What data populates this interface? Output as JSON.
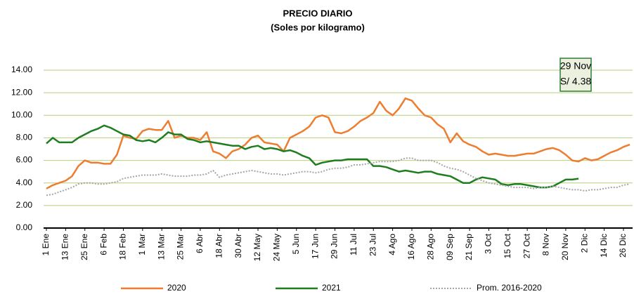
{
  "chart_data": {
    "type": "line",
    "title": "PRECIO DIARIO",
    "subtitle": "(Soles por kilogramo)",
    "categories": [
      "1 Ene",
      null,
      null,
      "13 Ene",
      null,
      null,
      "25 Ene",
      null,
      null,
      "6 Feb",
      null,
      null,
      "18 Feb",
      null,
      null,
      "1 Mar",
      null,
      null,
      "13 Mar",
      null,
      null,
      "25 Mar",
      null,
      null,
      "6 Abr",
      null,
      null,
      "18 Abr",
      null,
      null,
      "30 Abr",
      null,
      null,
      "12 May",
      null,
      null,
      "24 May",
      null,
      null,
      "5 Jun",
      null,
      null,
      "17 Jun",
      null,
      null,
      "29 Jun",
      null,
      null,
      "11 Jul",
      null,
      null,
      "23 Jul",
      null,
      null,
      "4 Ago",
      null,
      null,
      "16 Ago",
      null,
      null,
      "28 Ago",
      null,
      null,
      "09 Sep",
      null,
      null,
      "21 Sep",
      null,
      null,
      "3 Oct",
      null,
      null,
      "15 Oct",
      null,
      null,
      "27 Oct",
      null,
      null,
      "8 Nov",
      null,
      null,
      "20 Nov",
      null,
      null,
      "2 Dic",
      null,
      null,
      "14 Dic",
      null,
      null,
      "26 Dic",
      null
    ],
    "series": [
      {
        "name": "2020",
        "color": "#ed7d31",
        "line_style": "solid",
        "values": [
          3.5,
          3.8,
          4.0,
          4.2,
          4.6,
          5.5,
          6.0,
          5.8,
          5.8,
          5.7,
          5.7,
          6.5,
          8.2,
          8.0,
          7.9,
          8.6,
          8.8,
          8.7,
          8.7,
          9.5,
          8.0,
          8.2,
          8.0,
          8.0,
          7.8,
          8.5,
          6.8,
          6.6,
          6.2,
          6.8,
          7.0,
          7.4,
          8.0,
          8.2,
          7.6,
          7.5,
          7.4,
          6.8,
          8.0,
          8.3,
          8.6,
          9.0,
          9.8,
          10.0,
          9.8,
          8.5,
          8.4,
          8.6,
          9.0,
          9.5,
          9.8,
          10.2,
          11.2,
          10.4,
          10.0,
          10.6,
          11.5,
          11.3,
          10.6,
          10.0,
          9.8,
          9.2,
          8.8,
          7.6,
          8.4,
          7.7,
          7.4,
          7.2,
          6.8,
          6.5,
          6.6,
          6.5,
          6.4,
          6.4,
          6.5,
          6.6,
          6.6,
          6.8,
          7.0,
          7.1,
          6.9,
          6.5,
          6.0,
          5.9,
          6.2,
          6.0,
          6.1,
          6.4,
          6.7,
          6.9,
          7.2,
          7.4
        ]
      },
      {
        "name": "2021",
        "color": "#1e7d1e",
        "line_style": "solid",
        "values": [
          7.5,
          8.0,
          7.6,
          7.6,
          7.6,
          8.0,
          8.3,
          8.6,
          8.8,
          9.1,
          8.9,
          8.6,
          8.3,
          8.2,
          7.8,
          7.7,
          7.8,
          7.6,
          8.0,
          8.5,
          8.3,
          8.3,
          7.9,
          7.8,
          7.6,
          7.7,
          7.6,
          7.5,
          7.4,
          7.3,
          7.3,
          7.0,
          7.2,
          7.3,
          7.0,
          7.1,
          7.0,
          6.8,
          6.9,
          6.7,
          6.4,
          6.2,
          5.6,
          5.8,
          5.9,
          6.0,
          6.0,
          6.1,
          6.1,
          6.1,
          6.1,
          5.5,
          5.5,
          5.4,
          5.2,
          5.0,
          5.1,
          5.0,
          4.9,
          5.0,
          5.0,
          4.8,
          4.7,
          4.6,
          4.3,
          4.0,
          4.0,
          4.3,
          4.5,
          4.4,
          4.3,
          3.9,
          3.8,
          3.9,
          3.9,
          3.8,
          3.7,
          3.6,
          3.6,
          3.7,
          4.0,
          4.3,
          4.3,
          4.38,
          null,
          null,
          null,
          null,
          null,
          null,
          null,
          null
        ]
      },
      {
        "name": "Prom. 2016-2020",
        "color": "#a6a6a6",
        "line_style": "dotted",
        "values": [
          2.9,
          3.0,
          3.2,
          3.4,
          3.6,
          3.9,
          4.0,
          4.0,
          3.9,
          3.9,
          4.0,
          4.1,
          4.4,
          4.5,
          4.6,
          4.7,
          4.7,
          4.7,
          4.8,
          4.7,
          4.6,
          4.6,
          4.6,
          4.7,
          4.7,
          4.8,
          5.1,
          4.5,
          4.7,
          4.8,
          4.9,
          5.0,
          5.1,
          5.0,
          4.9,
          4.8,
          4.8,
          4.7,
          4.8,
          4.9,
          5.0,
          5.0,
          4.9,
          5.0,
          5.2,
          5.3,
          5.3,
          5.4,
          5.6,
          5.6,
          5.7,
          5.8,
          5.9,
          5.9,
          5.9,
          6.0,
          6.2,
          6.2,
          6.0,
          6.0,
          6.0,
          5.8,
          5.5,
          5.3,
          5.2,
          5.0,
          4.7,
          4.4,
          4.2,
          4.0,
          3.9,
          3.8,
          3.7,
          3.6,
          3.6,
          3.6,
          3.5,
          3.6,
          3.6,
          3.7,
          3.6,
          3.5,
          3.4,
          3.4,
          3.3,
          3.4,
          3.4,
          3.5,
          3.6,
          3.6,
          3.8,
          3.9
        ]
      }
    ],
    "ylim": [
      0,
      14
    ],
    "yticks": [
      {
        "value": 0,
        "label": "0.00"
      },
      {
        "value": 2,
        "label": "2.00"
      },
      {
        "value": 4,
        "label": "4.00"
      },
      {
        "value": 6,
        "label": "6.00"
      },
      {
        "value": 8,
        "label": "8.00"
      },
      {
        "value": 10,
        "label": "10.00"
      },
      {
        "value": 12,
        "label": "12.00"
      },
      {
        "value": 14,
        "label": "14.00"
      }
    ],
    "grid": true,
    "legend": "bottom",
    "annotation": [
      "29 Nov",
      "S/ 4.38"
    ]
  }
}
